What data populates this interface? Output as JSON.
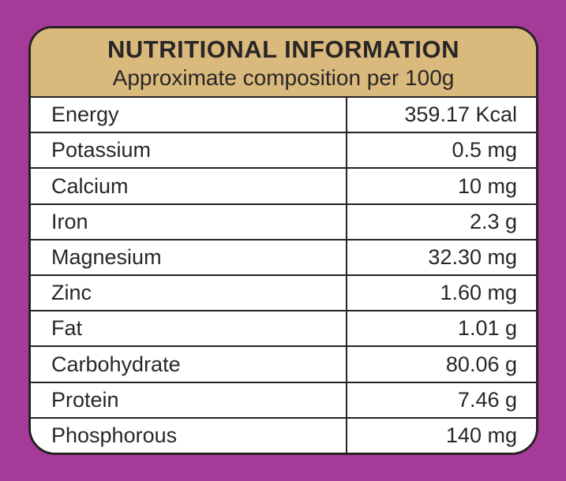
{
  "colors": {
    "background": "#a63a99",
    "header_background": "#d9b97c",
    "border": "#262122",
    "text": "#2a2627",
    "row_background": "#ffffff"
  },
  "header": {
    "title": "NUTRITIONAL INFORMATION",
    "subtitle": "Approximate composition per 100g"
  },
  "table": {
    "rows": [
      {
        "label": "Energy",
        "value": "359.17 Kcal"
      },
      {
        "label": "Potassium",
        "value": "0.5 mg"
      },
      {
        "label": "Calcium",
        "value": "10 mg"
      },
      {
        "label": "Iron",
        "value": "2.3 g"
      },
      {
        "label": "Magnesium",
        "value": "32.30 mg"
      },
      {
        "label": "Zinc",
        "value": "1.60 mg"
      },
      {
        "label": "Fat",
        "value": "1.01 g"
      },
      {
        "label": "Carbohydrate",
        "value": "80.06 g"
      },
      {
        "label": "Protein",
        "value": "7.46 g"
      },
      {
        "label": "Phosphorous",
        "value": "140 mg"
      }
    ]
  }
}
